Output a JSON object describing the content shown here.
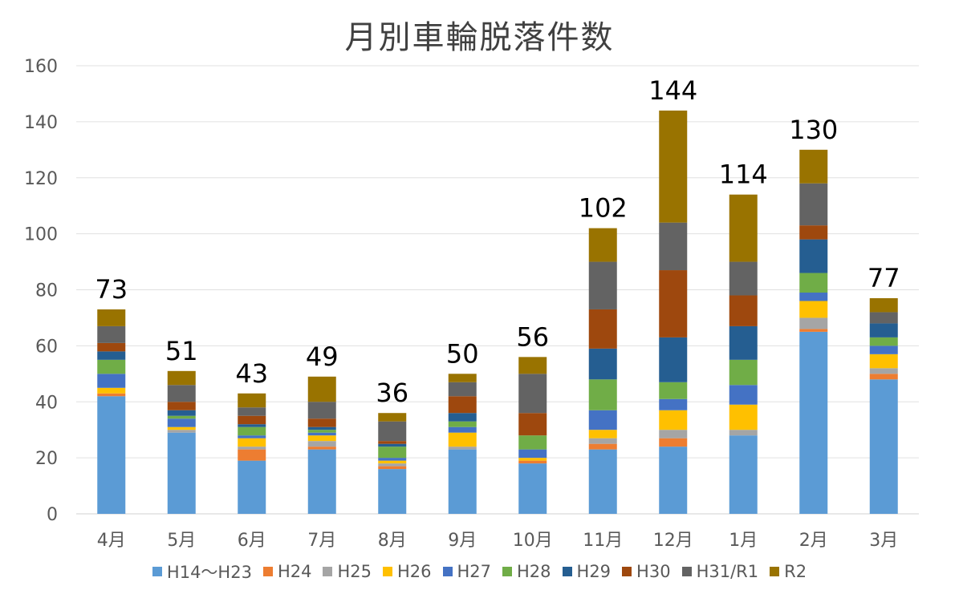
{
  "chart_data": {
    "type": "bar",
    "stacked": true,
    "title": "月別車輪脱落件数",
    "xlabel": "",
    "ylabel": "",
    "ylim": [
      0,
      160
    ],
    "yticks": [
      0,
      20,
      40,
      60,
      80,
      100,
      120,
      140,
      160
    ],
    "grid": true,
    "legend_position": "bottom",
    "categories": [
      "4月",
      "5月",
      "6月",
      "7月",
      "8月",
      "9月",
      "10月",
      "11月",
      "12月",
      "1月",
      "2月",
      "3月"
    ],
    "totals": [
      73,
      51,
      43,
      49,
      36,
      50,
      56,
      102,
      144,
      114,
      130,
      77
    ],
    "series": [
      {
        "name": "H14～H23",
        "color": "#5b9bd5",
        "values": [
          42,
          29,
          19,
          23,
          16,
          23,
          18,
          23,
          24,
          28,
          65,
          48
        ]
      },
      {
        "name": "H24",
        "color": "#ed7d31",
        "values": [
          1,
          0,
          4,
          1,
          1,
          0,
          1,
          2,
          3,
          0,
          1,
          2
        ]
      },
      {
        "name": "H25",
        "color": "#a5a5a5",
        "values": [
          0,
          1,
          1,
          2,
          1,
          1,
          0,
          2,
          3,
          2,
          4,
          2
        ]
      },
      {
        "name": "H26",
        "color": "#ffc000",
        "values": [
          2,
          1,
          3,
          2,
          1,
          5,
          1,
          3,
          7,
          9,
          6,
          5
        ]
      },
      {
        "name": "H27",
        "color": "#4472c4",
        "values": [
          5,
          3,
          1,
          1,
          1,
          2,
          3,
          7,
          4,
          7,
          3,
          3
        ]
      },
      {
        "name": "H28",
        "color": "#70ad47",
        "values": [
          5,
          1,
          3,
          1,
          4,
          2,
          5,
          11,
          6,
          9,
          7,
          3
        ]
      },
      {
        "name": "H29",
        "color": "#255e91",
        "values": [
          3,
          2,
          1,
          1,
          1,
          3,
          0,
          11,
          16,
          12,
          12,
          5
        ]
      },
      {
        "name": "H30",
        "color": "#9e480e",
        "values": [
          3,
          3,
          3,
          3,
          1,
          6,
          8,
          14,
          24,
          11,
          5,
          0
        ]
      },
      {
        "name": "H31/R1",
        "color": "#636363",
        "values": [
          6,
          6,
          3,
          6,
          7,
          5,
          14,
          17,
          17,
          12,
          15,
          4
        ]
      },
      {
        "name": "R2",
        "color": "#997300",
        "values": [
          6,
          5,
          5,
          9,
          3,
          3,
          6,
          12,
          40,
          24,
          12,
          5
        ]
      }
    ]
  }
}
